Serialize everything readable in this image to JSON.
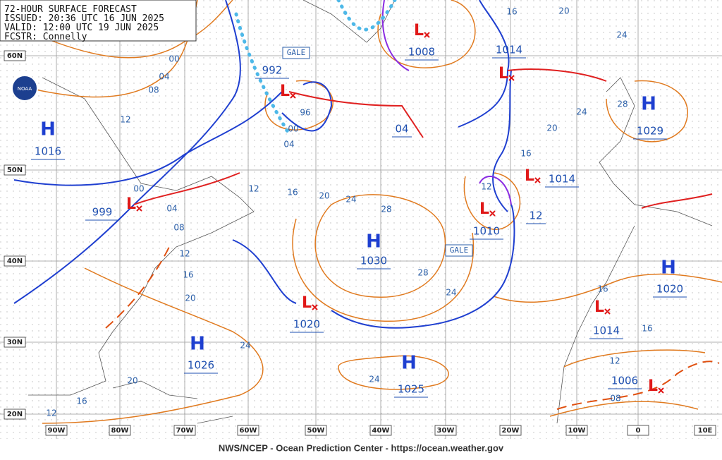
{
  "header": {
    "title": "72-HOUR SURFACE FORECAST",
    "issued": "ISSUED: 20:36 UTC 16 JUN 2025",
    "valid": "VALID: 12:00 UTC 19 JUN 2025",
    "forecaster": "FCSTR: Connelly"
  },
  "logo": "NOAA",
  "centers": [
    {
      "type": "H",
      "pressure": "1016"
    },
    {
      "type": "H",
      "pressure": "1030"
    },
    {
      "type": "H",
      "pressure": "1026"
    },
    {
      "type": "H",
      "pressure": "1025"
    },
    {
      "type": "H",
      "pressure": "1029"
    },
    {
      "type": "H",
      "pressure": "1020"
    },
    {
      "type": "L",
      "pressure": "1008"
    },
    {
      "type": "L",
      "pressure": "1014"
    },
    {
      "type": "L",
      "pressure": "992"
    },
    {
      "type": "L",
      "pressure": "1014"
    },
    {
      "type": "L",
      "pressure": "1010"
    },
    {
      "type": "L",
      "pressure": "1020"
    },
    {
      "type": "L",
      "pressure": "1014"
    },
    {
      "type": "L",
      "pressure": "1006"
    },
    {
      "type": "L",
      "pressure": "999"
    }
  ],
  "forecast_positions": [
    "04",
    "12"
  ],
  "isobar_labels": [
    "00",
    "04",
    "08",
    "12",
    "96",
    "00",
    "04",
    "12",
    "16",
    "20",
    "24",
    "28",
    "28",
    "24",
    "16",
    "20",
    "24",
    "28",
    "24",
    "20",
    "16",
    "12",
    "00",
    "04",
    "08",
    "12",
    "16",
    "20",
    "24",
    "20",
    "16",
    "12",
    "24",
    "16",
    "16",
    "12",
    "08"
  ],
  "latitude_labels": [
    "60N",
    "50N",
    "40N",
    "30N",
    "20N"
  ],
  "longitude_labels": [
    "90W",
    "80W",
    "70W",
    "60W",
    "50W",
    "40W",
    "30W",
    "20W",
    "10W",
    "0",
    "10E"
  ],
  "warnings": [
    "GALE",
    "GALE"
  ],
  "footer": "NWS/NCEP - Ocean Prediction Center - https://ocean.weather.gov"
}
